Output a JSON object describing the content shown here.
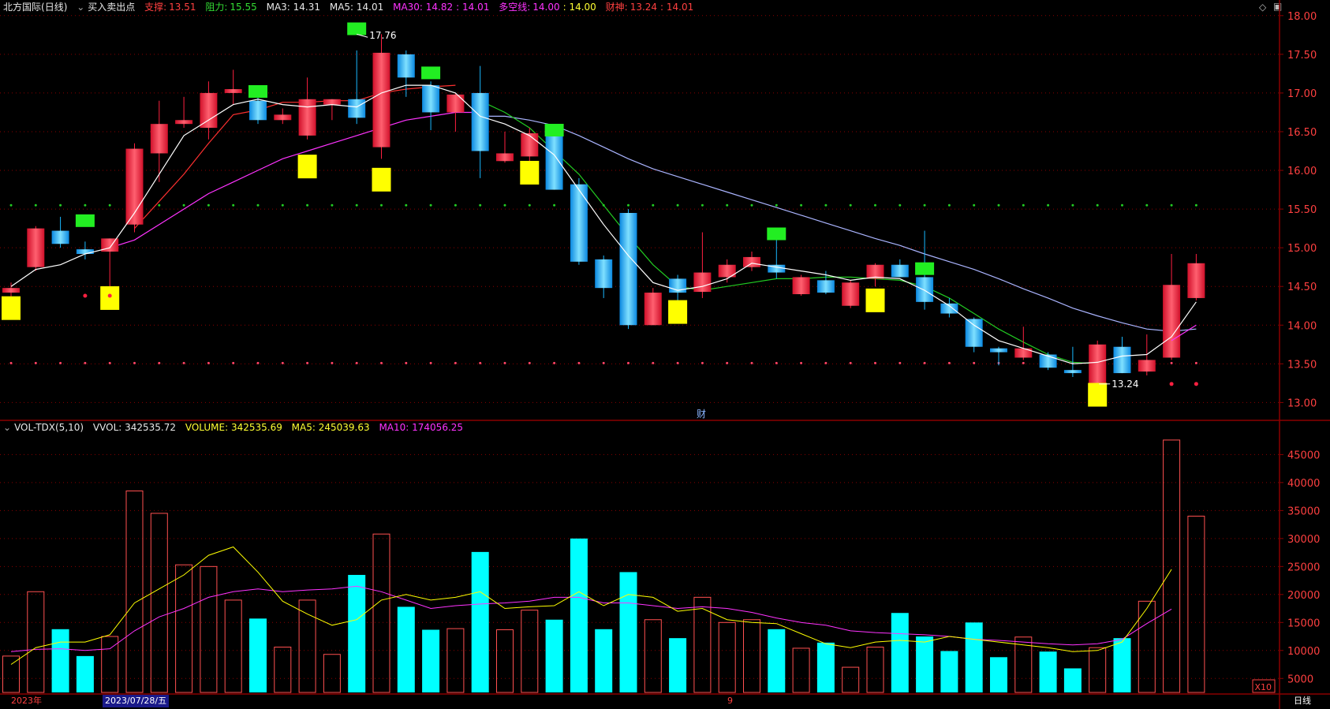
{
  "price_header": {
    "name": "北方国际",
    "period": "(日线)",
    "indicator_menu": "买入卖出点",
    "support_label": "支撑:",
    "support_value": "13.51",
    "resist_label": "阻力:",
    "resist_value": "15.55",
    "ma3": "MA3: 14.31",
    "ma5": "MA5: 14.01",
    "ma30": "MA30: 14.82",
    "ma30_b": ": 14.01",
    "dkx_label": "多空线:",
    "dkx_value": "14.00",
    "dkx_b": ": 14.00",
    "cs_label": "财神:",
    "cs_value": "13.24",
    "cs_b": ": 14.01"
  },
  "volume_header": {
    "indicator": "VOL-TDX(5,10)",
    "vvol": "VVOL: 342535.72",
    "volume": "VOLUME: 342535.69",
    "ma5": "MA5: 245039.63",
    "ma10": "MA10: 174056.25"
  },
  "annotations": {
    "high_label": "17.76",
    "low_label": "13.24",
    "fin_marker": "财",
    "volume_unit": "X10"
  },
  "bottom_bar": {
    "year": "2023年",
    "date": "2023/07/28/五",
    "mid_marker": "9",
    "period_button": "日线"
  },
  "colors": {
    "up": "#ff2040",
    "down": "#19b8ff",
    "ma_white": "#ffffff",
    "ma_red": "#ff3030",
    "ma_magenta": "#ff33ff",
    "ma_lavender": "#aab4ff",
    "ma_green": "#22cc22",
    "vol_ma5": "#ffff00",
    "vol_ma10": "#ff33ff",
    "grid": "#8b0000",
    "axis_text": "#ff4040"
  },
  "chart_data": [
    {
      "type": "candlestick",
      "y_ticks": [
        "13.00",
        "13.50",
        "14.00",
        "14.50",
        "15.00",
        "15.50",
        "16.00",
        "16.50",
        "17.00",
        "17.50",
        "18.00"
      ],
      "ylim": [
        12.8,
        18.1
      ],
      "support_level": 13.51,
      "resistance_level": 15.55,
      "candles": [
        {
          "o": 14.42,
          "h": 14.55,
          "l": 14.1,
          "c": 14.48,
          "dir": "up"
        },
        {
          "o": 14.75,
          "h": 15.28,
          "l": 14.7,
          "c": 15.25,
          "dir": "up"
        },
        {
          "o": 15.22,
          "h": 15.4,
          "l": 15.0,
          "c": 15.05,
          "dir": "down"
        },
        {
          "o": 14.98,
          "h": 15.08,
          "l": 14.85,
          "c": 14.92,
          "dir": "down"
        },
        {
          "o": 14.95,
          "h": 15.12,
          "l": 14.5,
          "c": 15.12,
          "dir": "up"
        },
        {
          "o": 15.3,
          "h": 16.35,
          "l": 15.2,
          "c": 16.28,
          "dir": "up"
        },
        {
          "o": 16.22,
          "h": 16.9,
          "l": 15.85,
          "c": 16.6,
          "dir": "up"
        },
        {
          "o": 16.6,
          "h": 16.95,
          "l": 16.55,
          "c": 16.65,
          "dir": "up"
        },
        {
          "o": 16.55,
          "h": 17.15,
          "l": 16.4,
          "c": 17.0,
          "dir": "up"
        },
        {
          "o": 17.0,
          "h": 17.3,
          "l": 16.85,
          "c": 17.05,
          "dir": "up"
        },
        {
          "o": 16.9,
          "h": 17.05,
          "l": 16.6,
          "c": 16.65,
          "dir": "down"
        },
        {
          "o": 16.65,
          "h": 16.8,
          "l": 16.6,
          "c": 16.72,
          "dir": "up"
        },
        {
          "o": 16.45,
          "h": 17.2,
          "l": 16.4,
          "c": 16.92,
          "dir": "up"
        },
        {
          "o": 16.85,
          "h": 16.92,
          "l": 16.65,
          "c": 16.92,
          "dir": "up"
        },
        {
          "o": 16.92,
          "h": 17.55,
          "l": 16.6,
          "c": 16.68,
          "dir": "down"
        },
        {
          "o": 16.3,
          "h": 17.76,
          "l": 16.15,
          "c": 17.52,
          "dir": "up"
        },
        {
          "o": 17.5,
          "h": 17.55,
          "l": 16.95,
          "c": 17.2,
          "dir": "down"
        },
        {
          "o": 17.1,
          "h": 17.15,
          "l": 16.52,
          "c": 16.75,
          "dir": "down"
        },
        {
          "o": 16.75,
          "h": 17.0,
          "l": 16.5,
          "c": 16.98,
          "dir": "up"
        },
        {
          "o": 17.0,
          "h": 17.35,
          "l": 15.9,
          "c": 16.25,
          "dir": "down"
        },
        {
          "o": 16.12,
          "h": 16.5,
          "l": 16.1,
          "c": 16.22,
          "dir": "up"
        },
        {
          "o": 16.18,
          "h": 16.55,
          "l": 16.0,
          "c": 16.48,
          "dir": "up"
        },
        {
          "o": 16.45,
          "h": 16.55,
          "l": 15.75,
          "c": 15.75,
          "dir": "down"
        },
        {
          "o": 15.82,
          "h": 15.9,
          "l": 14.78,
          "c": 14.82,
          "dir": "down"
        },
        {
          "o": 14.85,
          "h": 14.9,
          "l": 14.35,
          "c": 14.48,
          "dir": "down"
        },
        {
          "o": 15.45,
          "h": 15.5,
          "l": 13.95,
          "c": 14.0,
          "dir": "down"
        },
        {
          "o": 14.0,
          "h": 14.48,
          "l": 14.0,
          "c": 14.42,
          "dir": "up"
        },
        {
          "o": 14.6,
          "h": 14.65,
          "l": 14.28,
          "c": 14.42,
          "dir": "down"
        },
        {
          "o": 14.43,
          "h": 15.2,
          "l": 14.35,
          "c": 14.68,
          "dir": "up"
        },
        {
          "o": 14.62,
          "h": 14.85,
          "l": 14.55,
          "c": 14.78,
          "dir": "up"
        },
        {
          "o": 14.75,
          "h": 14.95,
          "l": 14.7,
          "c": 14.88,
          "dir": "up"
        },
        {
          "o": 14.78,
          "h": 15.1,
          "l": 14.6,
          "c": 14.68,
          "dir": "down"
        },
        {
          "o": 14.4,
          "h": 14.65,
          "l": 14.38,
          "c": 14.62,
          "dir": "up"
        },
        {
          "o": 14.58,
          "h": 14.7,
          "l": 14.4,
          "c": 14.42,
          "dir": "down"
        },
        {
          "o": 14.25,
          "h": 14.58,
          "l": 14.22,
          "c": 14.55,
          "dir": "up"
        },
        {
          "o": 14.6,
          "h": 14.8,
          "l": 14.5,
          "c": 14.78,
          "dir": "up"
        },
        {
          "o": 14.78,
          "h": 14.85,
          "l": 14.65,
          "c": 14.62,
          "dir": "down"
        },
        {
          "o": 14.62,
          "h": 15.22,
          "l": 14.2,
          "c": 14.3,
          "dir": "down"
        },
        {
          "o": 14.28,
          "h": 14.35,
          "l": 14.1,
          "c": 14.15,
          "dir": "down"
        },
        {
          "o": 14.08,
          "h": 14.1,
          "l": 13.65,
          "c": 13.72,
          "dir": "down"
        },
        {
          "o": 13.7,
          "h": 13.72,
          "l": 13.48,
          "c": 13.65,
          "dir": "down"
        },
        {
          "o": 13.58,
          "h": 13.98,
          "l": 13.55,
          "c": 13.7,
          "dir": "up"
        },
        {
          "o": 13.62,
          "h": 13.65,
          "l": 13.42,
          "c": 13.45,
          "dir": "down"
        },
        {
          "o": 13.42,
          "h": 13.72,
          "l": 13.33,
          "c": 13.38,
          "dir": "down"
        },
        {
          "o": 13.24,
          "h": 13.8,
          "l": 13.24,
          "c": 13.75,
          "dir": "up"
        },
        {
          "o": 13.72,
          "h": 13.85,
          "l": 13.38,
          "c": 13.38,
          "dir": "down"
        },
        {
          "o": 13.4,
          "h": 13.88,
          "l": 13.35,
          "c": 13.55,
          "dir": "up"
        },
        {
          "o": 13.58,
          "h": 14.92,
          "l": 13.55,
          "c": 14.52,
          "dir": "up"
        },
        {
          "o": 14.35,
          "h": 14.92,
          "l": 14.32,
          "c": 14.8,
          "dir": "up"
        }
      ],
      "ma_white": [
        14.5,
        14.72,
        14.78,
        14.92,
        15.0,
        15.45,
        15.95,
        16.45,
        16.65,
        16.85,
        16.92,
        16.85,
        16.82,
        16.85,
        16.82,
        17.0,
        17.1,
        17.1,
        17.0,
        16.7,
        16.6,
        16.45,
        16.2,
        15.75,
        15.3,
        14.9,
        14.55,
        14.45,
        14.5,
        14.6,
        14.8,
        14.75,
        14.7,
        14.65,
        14.58,
        14.62,
        14.6,
        14.45,
        14.25,
        14.0,
        13.8,
        13.7,
        13.6,
        13.5,
        13.52,
        13.6,
        13.62,
        13.85,
        14.3
      ],
      "ma_red": [
        null,
        null,
        null,
        null,
        null,
        15.25,
        15.6,
        15.95,
        16.35,
        16.72,
        16.78,
        16.88,
        16.88,
        16.9,
        16.9,
        17.0,
        17.05,
        17.08,
        17.1
      ],
      "ma_magenta": [
        null,
        null,
        null,
        null,
        15.0,
        15.1,
        15.3,
        15.5,
        15.7,
        15.85,
        16.0,
        16.15,
        16.25,
        16.35,
        16.45,
        16.55,
        16.65,
        16.7,
        16.75,
        16.75
      ],
      "ma_magenta_tail": [
        13.8,
        14.0
      ],
      "ma_lavender": [
        null,
        null,
        null,
        null,
        null,
        null,
        null,
        null,
        null,
        null,
        null,
        null,
        null,
        null,
        null,
        null,
        null,
        null,
        null,
        16.7,
        16.7,
        16.65,
        16.58,
        16.45,
        16.3,
        16.15,
        16.02,
        15.92,
        15.82,
        15.72,
        15.62,
        15.52,
        15.42,
        15.32,
        15.22,
        15.12,
        15.03,
        14.92,
        14.82,
        14.72,
        14.6,
        14.47,
        14.35,
        14.22,
        14.12,
        14.03,
        13.95,
        13.92,
        13.95
      ],
      "ma_green": [
        null,
        null,
        null,
        null,
        null,
        null,
        null,
        null,
        null,
        null,
        null,
        null,
        null,
        null,
        null,
        null,
        null,
        null,
        null,
        16.9,
        16.75,
        16.55,
        16.25,
        15.95,
        15.55,
        15.15,
        14.78,
        14.5,
        14.45,
        14.5,
        14.55,
        14.6,
        14.6,
        14.62,
        14.62,
        14.6,
        14.58,
        14.5,
        14.35,
        14.15,
        13.95,
        13.78,
        13.62,
        13.52,
        13.5
      ],
      "yellow_markers": [
        {
          "i": 0,
          "p": 14.22
        },
        {
          "i": 4,
          "p": 14.35
        },
        {
          "i": 12,
          "p": 16.05
        },
        {
          "i": 15,
          "p": 15.88
        },
        {
          "i": 21,
          "p": 15.97
        },
        {
          "i": 27,
          "p": 14.17
        },
        {
          "i": 35,
          "p": 14.32
        },
        {
          "i": 44,
          "p": 13.1
        }
      ],
      "green_markers": [
        {
          "i": 3,
          "p": 15.35
        },
        {
          "i": 10,
          "p": 17.02
        },
        {
          "i": 14,
          "p": 17.83
        },
        {
          "i": 17,
          "p": 17.26
        },
        {
          "i": 22,
          "p": 16.52
        },
        {
          "i": 31,
          "p": 15.18
        },
        {
          "i": 37,
          "p": 14.73
        }
      ]
    },
    {
      "type": "bar",
      "y_ticks": [
        "5000",
        "10000",
        "15000",
        "20000",
        "25000",
        "30000",
        "35000",
        "40000",
        "45000"
      ],
      "ylim": [
        2500,
        49000
      ],
      "values": [
        9000,
        20500,
        13800,
        9000,
        12500,
        38500,
        34500,
        25300,
        25000,
        19000,
        15700,
        10600,
        19000,
        9300,
        23500,
        30800,
        17800,
        13700,
        13900,
        27600,
        13700,
        17200,
        15500,
        30000,
        13800,
        24000,
        15500,
        12200,
        19500,
        15000,
        15500,
        13800,
        10400,
        11400,
        7000,
        10600,
        16700,
        12500,
        9900,
        15000,
        8800,
        12400,
        9800,
        6800,
        10500,
        12200,
        18800,
        47600,
        34000
      ],
      "directions": [
        "up",
        "up",
        "down",
        "down",
        "up",
        "up",
        "up",
        "up",
        "up",
        "up",
        "down",
        "up",
        "up",
        "up",
        "down",
        "up",
        "down",
        "down",
        "up",
        "down",
        "up",
        "up",
        "down",
        "down",
        "down",
        "down",
        "up",
        "down",
        "up",
        "up",
        "up",
        "down",
        "up",
        "down",
        "up",
        "up",
        "down",
        "down",
        "down",
        "down",
        "down",
        "up",
        "down",
        "down",
        "up",
        "down",
        "up",
        "up",
        "up"
      ],
      "ma5": [
        7500,
        10500,
        11500,
        11500,
        12800,
        18500,
        21000,
        23500,
        27000,
        28500,
        24000,
        18800,
        16500,
        14500,
        15500,
        19000,
        20000,
        19000,
        19500,
        20500,
        17500,
        17800,
        18000,
        20500,
        18000,
        20000,
        19500,
        17000,
        17500,
        15500,
        15000,
        14800,
        13000,
        11200,
        10500,
        11500,
        11800,
        11500,
        12500,
        12000,
        11500,
        11000,
        10500,
        9800,
        10000,
        11500,
        17500,
        24500
      ],
      "ma10": [
        9800,
        10200,
        10300,
        10000,
        10300,
        13500,
        16000,
        17500,
        19500,
        20500,
        21000,
        20500,
        20800,
        21000,
        21500,
        20500,
        19000,
        17500,
        18000,
        18300,
        18500,
        18800,
        19500,
        19500,
        18500,
        18500,
        18000,
        17500,
        17800,
        17500,
        16800,
        15800,
        15000,
        14500,
        13500,
        13200,
        13000,
        12800,
        12500,
        12000,
        11800,
        11500,
        11200,
        11000,
        11200,
        12000,
        14800,
        17400
      ]
    }
  ]
}
